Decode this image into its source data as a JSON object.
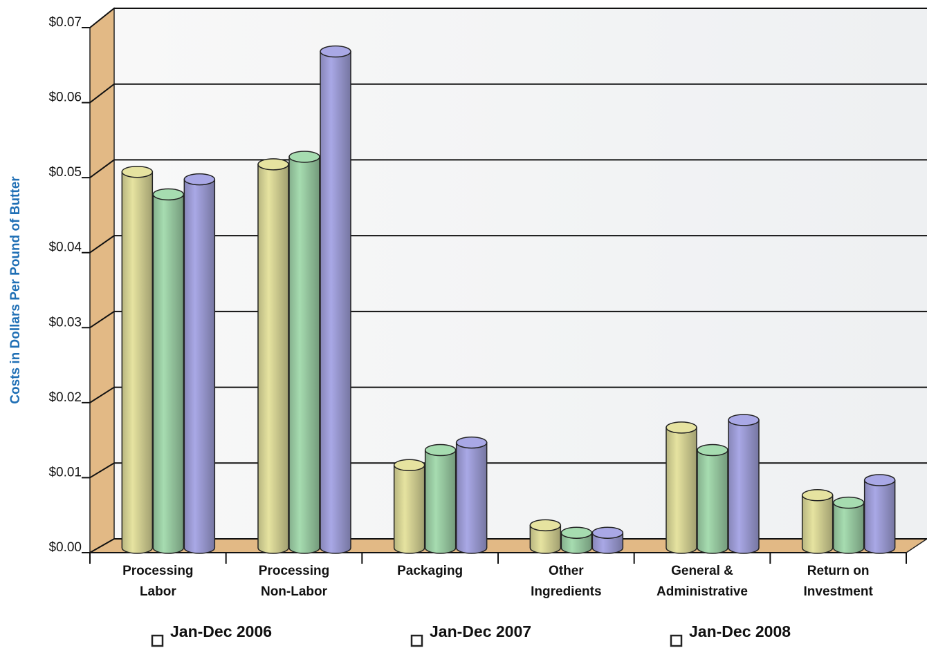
{
  "chart_data": {
    "type": "bar",
    "y_label": "Costs in Dollars Per Pound of Butter",
    "categories": [
      "Processing Labor",
      "Processing Non-Labor",
      "Packaging",
      "Other Ingredients",
      "General & Administrative",
      "Return on Investment"
    ],
    "series": [
      {
        "name": "Jan-Dec 2006",
        "color": "#e6e3a0",
        "values": [
          0.05,
          0.051,
          0.011,
          0.003,
          0.016,
          0.007
        ]
      },
      {
        "name": "Jan-Dec 2007",
        "color": "#a6dcb0",
        "values": [
          0.047,
          0.052,
          0.013,
          0.002,
          0.013,
          0.006
        ]
      },
      {
        "name": "Jan-Dec 2008",
        "color": "#a9a8e6",
        "values": [
          0.049,
          0.066,
          0.014,
          0.002,
          0.017,
          0.009
        ]
      }
    ],
    "ylim": [
      0,
      0.07
    ],
    "yticks": [
      {
        "value": 0,
        "label": "$0.00"
      },
      {
        "value": 0.01,
        "label": "$0.01"
      },
      {
        "value": 0.02,
        "label": "$0.02"
      },
      {
        "value": 0.03,
        "label": "$0.03"
      },
      {
        "value": 0.04,
        "label": "$0.04"
      },
      {
        "value": 0.05,
        "label": "$0.05"
      },
      {
        "value": 0.06,
        "label": "$0.06"
      },
      {
        "value": 0.07,
        "label": "$0.07"
      }
    ],
    "grid": true
  }
}
